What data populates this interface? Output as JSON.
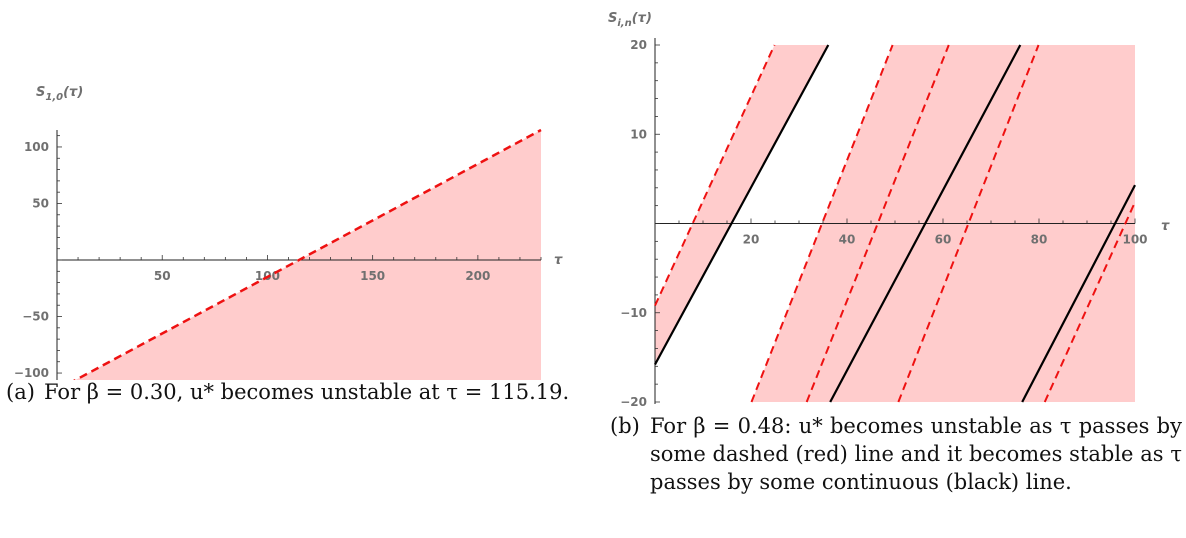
{
  "chart_data": [
    {
      "type": "area",
      "ylabel": "S_{1,0}(τ)",
      "xlabel": "τ",
      "xlim": [
        0,
        230
      ],
      "ylim": [
        -115,
        115
      ],
      "xticks": [
        50,
        100,
        150,
        200
      ],
      "yticks": [
        -100,
        -50,
        50,
        100
      ],
      "fill_color": "#ffcccc",
      "series": [
        {
          "style": "dashed",
          "color": "#ee1111",
          "x": [
            0,
            230
          ],
          "y": [
            -115,
            115
          ]
        }
      ],
      "shaded_region": "below dashed line"
    },
    {
      "type": "area",
      "ylabel": "S_{i,n}(τ)",
      "xlabel": "τ",
      "xlim": [
        0,
        100
      ],
      "ylim": [
        -20,
        20
      ],
      "xticks": [
        20,
        40,
        60,
        80,
        100
      ],
      "yticks": [
        -20,
        -10,
        10,
        20
      ],
      "fill_color": "#ffcccc",
      "series": [
        {
          "style": "dashed",
          "color": "#ee1111",
          "x": [
            0,
            24.9
          ],
          "y": [
            -9.2,
            20
          ]
        },
        {
          "style": "dashed",
          "color": "#ee1111",
          "x": [
            20.1,
            49.5
          ],
          "y": [
            -20,
            20
          ]
        },
        {
          "style": "dashed",
          "color": "#ee1111",
          "x": [
            31.6,
            61.2
          ],
          "y": [
            -20,
            20
          ]
        },
        {
          "style": "dashed",
          "color": "#ee1111",
          "x": [
            50.7,
            79.9
          ],
          "y": [
            -20,
            20
          ]
        },
        {
          "style": "dashed",
          "color": "#ee1111",
          "x": [
            81.2,
            100
          ],
          "y": [
            -20,
            2.4
          ]
        },
        {
          "style": "solid",
          "color": "#000000",
          "x": [
            0,
            36.1
          ],
          "y": [
            -15.8,
            20
          ]
        },
        {
          "style": "solid",
          "color": "#000000",
          "x": [
            36.5,
            76.1
          ],
          "y": [
            -20,
            20
          ]
        },
        {
          "style": "solid",
          "color": "#000000",
          "x": [
            76.5,
            100
          ],
          "y": [
            -20,
            4.3
          ]
        }
      ],
      "shaded_regions_x": [
        [
          0,
          36.1
        ],
        [
          20.1,
          100
        ]
      ]
    }
  ],
  "captions": {
    "a_tag": "(a)",
    "a_text": "For β = 0.30, u* becomes unstable at τ = 115.19.",
    "b_tag": "(b)",
    "b_text": "For β = 0.48: u* becomes unstable as τ passes by some dashed (red) line and it becomes stable as τ passes by some continuous (black) line."
  }
}
